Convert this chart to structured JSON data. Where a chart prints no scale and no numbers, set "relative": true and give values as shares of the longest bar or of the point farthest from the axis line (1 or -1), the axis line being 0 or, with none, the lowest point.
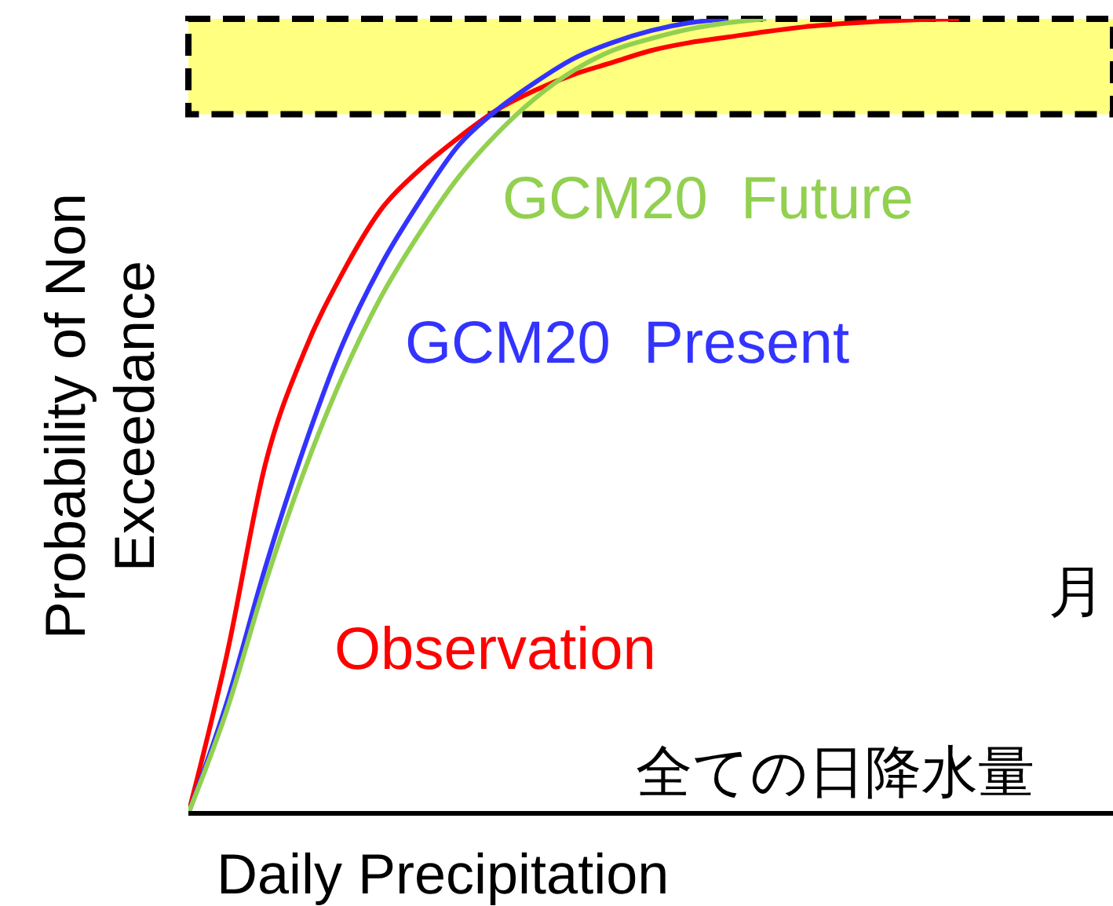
{
  "chart_data": {
    "type": "line",
    "relative": true,
    "xlabel": "Daily Precipitation",
    "ylabel": "Probability of Non\nExceedance",
    "categories": [
      null,
      null,
      null,
      null,
      null,
      null,
      null,
      null,
      null,
      null,
      null,
      null,
      null,
      null,
      null,
      null,
      null,
      null,
      null,
      null,
      null,
      null,
      null,
      null,
      null
    ],
    "series": [
      {
        "name": "Observation",
        "color": "#ff0000",
        "values": [
          0,
          0.2,
          0.44,
          0.58,
          0.68,
          0.76,
          0.81,
          0.85,
          0.885,
          0.91,
          0.93,
          0.945,
          0.96,
          0.97,
          0.977,
          0.984,
          0.99,
          0.994,
          0.997,
          0.999,
          1,
          null,
          null,
          null,
          null
        ]
      },
      {
        "name": "GCM20  Present",
        "color": "#3333ff",
        "values": [
          0,
          0.14,
          0.31,
          0.46,
          0.59,
          0.69,
          0.77,
          0.84,
          0.885,
          0.92,
          0.95,
          0.97,
          0.985,
          0.995,
          1,
          null,
          null,
          null,
          null,
          null,
          null,
          null,
          null,
          null,
          null
        ]
      },
      {
        "name": "GCM20  Future",
        "color": "#92d050",
        "values": [
          0,
          0.13,
          0.29,
          0.43,
          0.55,
          0.65,
          0.73,
          0.8,
          0.855,
          0.9,
          0.935,
          0.96,
          0.975,
          0.987,
          0.995,
          1,
          null,
          null,
          null,
          null,
          null,
          null,
          null,
          null,
          null
        ]
      }
    ],
    "bands": [
      {
        "axis": "y",
        "from": 0.88,
        "to": 1,
        "color": "#ffff80"
      }
    ],
    "annotations": [
      "全ての日降水量",
      "月"
    ],
    "legend": false,
    "grid": false,
    "marker": "none"
  }
}
